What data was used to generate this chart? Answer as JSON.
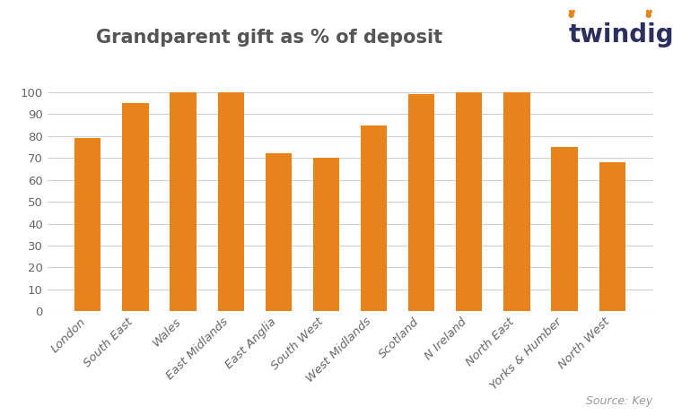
{
  "title": "Grandparent gift as % of deposit",
  "categories": [
    "London",
    "South East",
    "Wales",
    "East Midlands",
    "East Anglia",
    "South West",
    "West Midlands",
    "Scotland",
    "N Ireland",
    "North East",
    "Yorks & Humber",
    "North West"
  ],
  "values": [
    79,
    95,
    100,
    100,
    72,
    70,
    85,
    99,
    100,
    100,
    75,
    68
  ],
  "bar_color": "#E8821A",
  "background_color": "#ffffff",
  "ylim": [
    0,
    108
  ],
  "yticks": [
    0,
    10,
    20,
    30,
    40,
    50,
    60,
    70,
    80,
    90,
    100
  ],
  "grid_color": "#d0d0d0",
  "title_fontsize": 15,
  "tick_fontsize": 9.5,
  "source_text": "Source: Key",
  "twindig_text": "twindig",
  "twindig_color_main": "#2d2f5e",
  "twindig_color_accent": "#E8821A",
  "title_color": "#555555",
  "tick_color": "#666666"
}
